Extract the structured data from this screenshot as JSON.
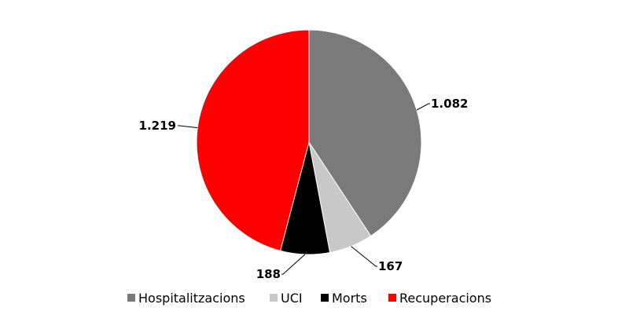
{
  "chart_data": {
    "type": "pie",
    "title": "",
    "start_angle_deg": 0,
    "direction": "clockwise",
    "legend_position": "bottom",
    "slices": [
      {
        "name": "Hospitalitzacions",
        "value": 1082,
        "label": "1.082",
        "color": "#7a7a7a"
      },
      {
        "name": "UCI",
        "value": 167,
        "label": "167",
        "color": "#c8c8c8"
      },
      {
        "name": "Morts",
        "value": 188,
        "label": "188",
        "color": "#000000"
      },
      {
        "name": "Recuperacions",
        "value": 1219,
        "label": "1.219",
        "color": "#ff0000"
      }
    ]
  }
}
